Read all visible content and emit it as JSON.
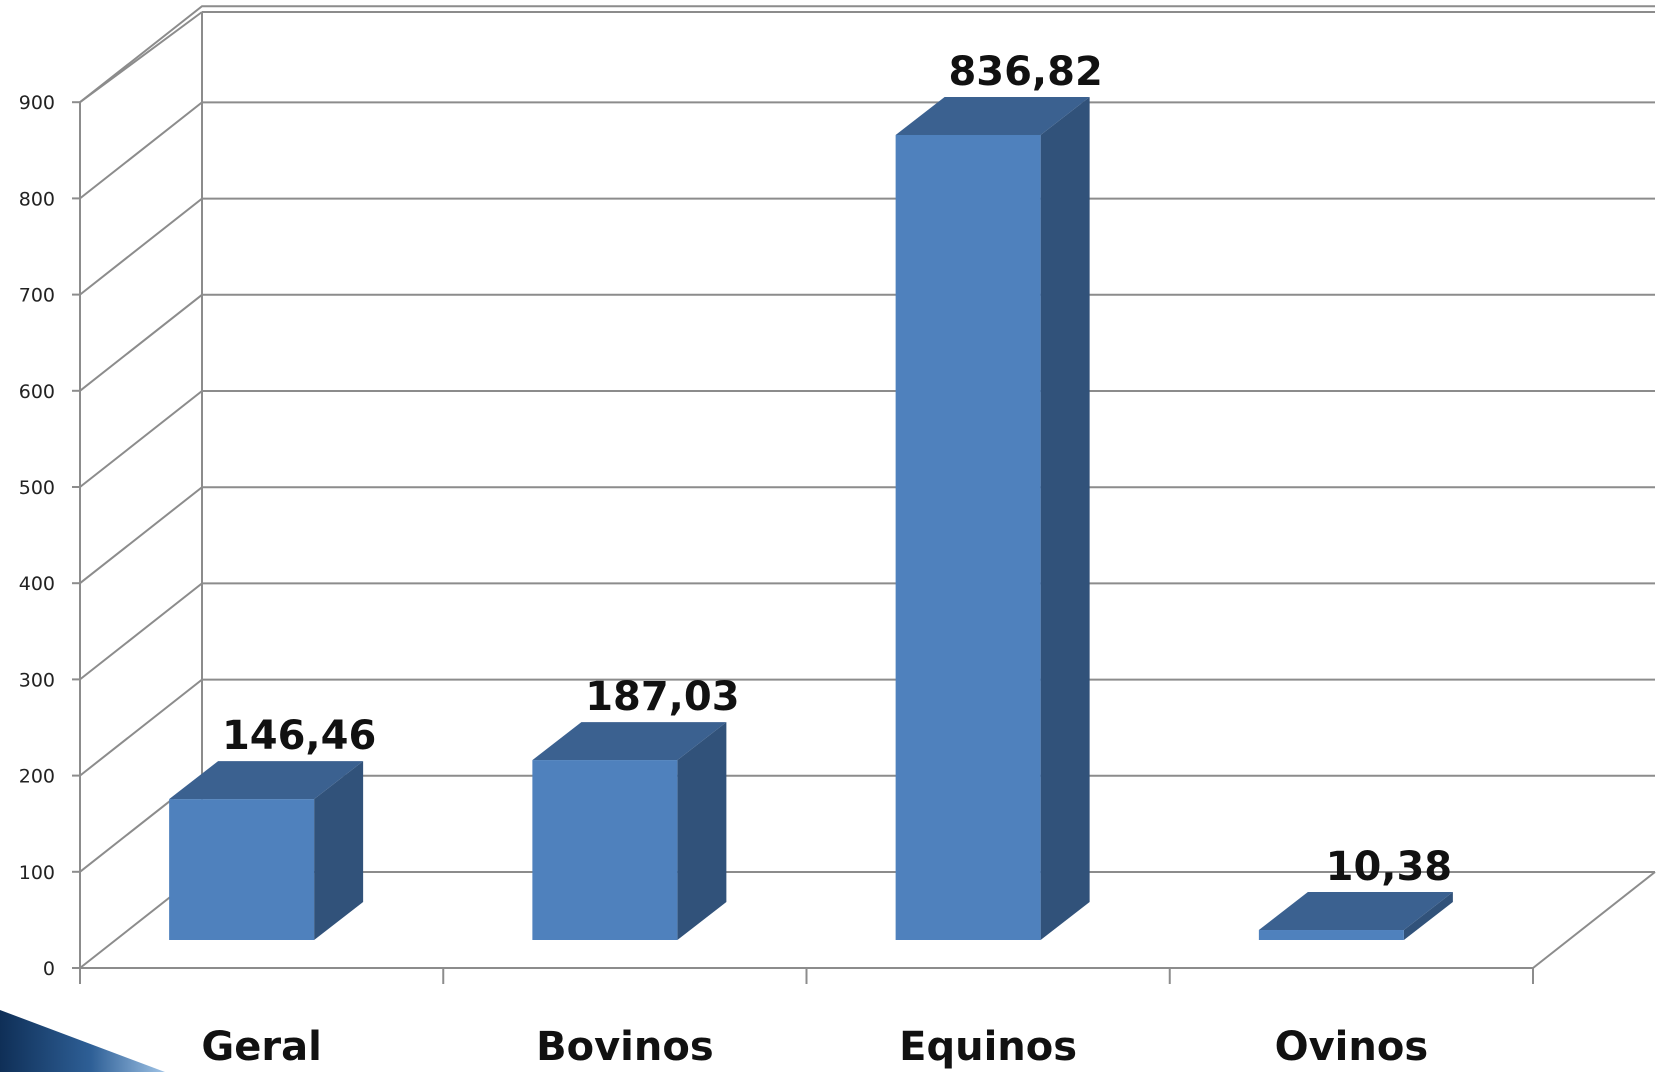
{
  "chart_data": {
    "type": "bar",
    "style": "3d-column",
    "categories": [
      "Geral",
      "Bovinos",
      "Equinos",
      "Ovinos"
    ],
    "values": [
      146.46,
      187.03,
      836.82,
      10.38
    ],
    "data_labels": [
      "146,46",
      "187,03",
      "836,82",
      "10,38"
    ],
    "yticks": [
      "0",
      "100",
      "200",
      "300",
      "400",
      "500",
      "600",
      "700",
      "800",
      "900"
    ],
    "ylim": [
      0,
      900
    ],
    "grid": true,
    "legend": "none",
    "title": "",
    "xlabel": "",
    "ylabel": "",
    "colors": {
      "bar_front": "#4f81bd",
      "bar_top": "#3b6190",
      "bar_side": "#31527a",
      "grid": "#8c8c8c",
      "deco_dark": "#0f2f57",
      "deco_light": "#9fc3e6"
    }
  }
}
